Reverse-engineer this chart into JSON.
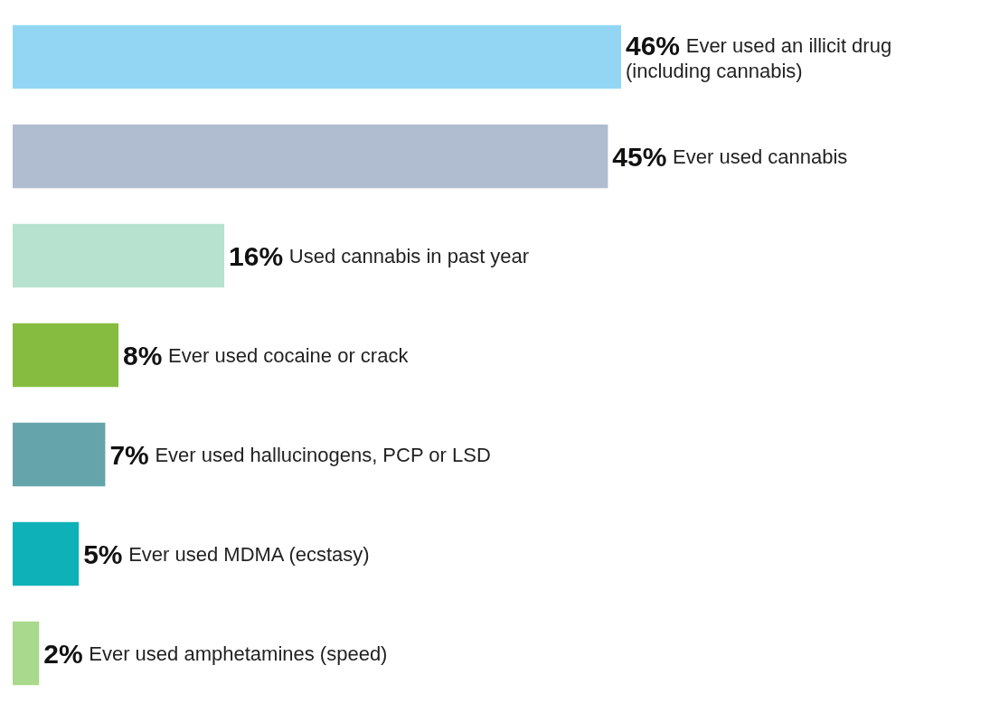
{
  "chart_data": {
    "type": "bar",
    "orientation": "horizontal",
    "categories": [
      "Ever used an illicit drug (including cannabis)",
      "Ever used cannabis",
      "Used cannabis in past year",
      "Ever used cocaine or crack",
      "Ever used hallucinogens, PCP or LSD",
      "Ever used MDMA (ecstasy)",
      "Ever used amphetamines (speed)"
    ],
    "values": [
      46,
      45,
      16,
      8,
      7,
      5,
      2
    ],
    "value_labels": [
      "46%",
      "45%",
      "16%",
      "8%",
      "7%",
      "5%",
      "2%"
    ],
    "colors": [
      "#93d6f4",
      "#b0bccf",
      "#b7e2d0",
      "#86bc40",
      "#66a4ab",
      "#0fb1b8",
      "#a9d98c"
    ]
  }
}
